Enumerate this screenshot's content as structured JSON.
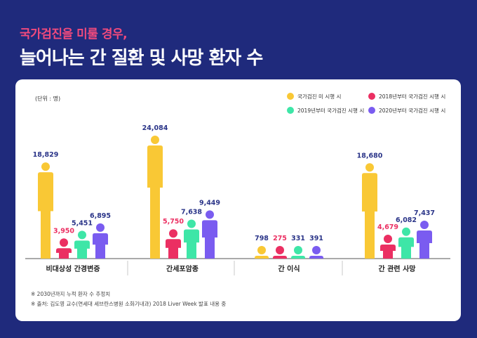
{
  "header": {
    "subtitle": "국가검진을 미룰 경우,",
    "title": "늘어나는 간 질환 및 사망 환자 수"
  },
  "chart_data": {
    "type": "bar",
    "unit_note": "(단위 : 명)",
    "categories": [
      "비대상성 간경변증",
      "간세포암종",
      "간 이식",
      "간 관련 사망"
    ],
    "series": [
      {
        "name": "국가검진 미 시행 시",
        "color": "#f9c835",
        "values": [
          18829,
          24084,
          798,
          18680
        ],
        "labels": [
          "18,829",
          "24,084",
          "798",
          "18,680"
        ]
      },
      {
        "name": "2018년부터 국가검진 시행 시",
        "color": "#eb2f62",
        "values": [
          3950,
          5750,
          275,
          4679
        ],
        "labels": [
          "3,950",
          "5,750",
          "275",
          "4,679"
        ]
      },
      {
        "name": "2019년부터 국가검진 시행 시",
        "color": "#3ee6a7",
        "values": [
          5451,
          7638,
          331,
          6082
        ],
        "labels": [
          "5,451",
          "7,638",
          "331",
          "6,082"
        ]
      },
      {
        "name": "2020년부터 국가검진 시행 시",
        "color": "#7a5cf0",
        "values": [
          6895,
          9449,
          391,
          7437
        ],
        "labels": [
          "6,895",
          "9,449",
          "391",
          "7,437"
        ]
      }
    ],
    "ylim": [
      0,
      24084
    ],
    "legend": "top-right",
    "label_colors": {
      "first": "#2a3488",
      "second": "#eb2f62"
    }
  },
  "footnotes": [
    "※ 2030년까지 누적 환자 수 추정치",
    "※ 출처: 김도영 교수(연세대 세브란스병원 소화기내과)  2018 Liver Week 발표 내용 중"
  ]
}
